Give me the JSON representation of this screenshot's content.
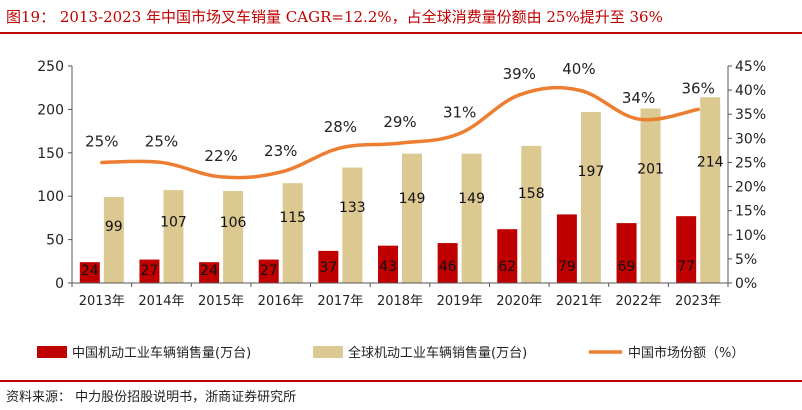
{
  "title": "图19： 2013-2023 年中国市场叉车销量 CAGR=12.2%，占全球消费量份额由 25%提升至 36%",
  "source": "资料来源： 中力股份招股说明书，浙商证券研究所",
  "colors": {
    "china": "#c00000",
    "global": "#dcc891",
    "share": "#ed7d31",
    "title": "#c00000"
  },
  "chart_data": {
    "type": "bar",
    "categories": [
      "2013年",
      "2014年",
      "2015年",
      "2016年",
      "2017年",
      "2018年",
      "2019年",
      "2020年",
      "2021年",
      "2022年",
      "2023年"
    ],
    "series": [
      {
        "name": "中国机动工业车辆销售量(万台)",
        "type": "bar",
        "axis": "left",
        "values": [
          24,
          27,
          24,
          27,
          37,
          43,
          46,
          62,
          79,
          69,
          77
        ]
      },
      {
        "name": "全球机动工业车辆销售量(万台)",
        "type": "bar",
        "axis": "left",
        "values": [
          99,
          107,
          106,
          115,
          133,
          149,
          149,
          158,
          197,
          201,
          214
        ]
      },
      {
        "name": "中国市场份额（%）",
        "type": "line",
        "axis": "right",
        "values": [
          25,
          25,
          22,
          23,
          28,
          29,
          31,
          39,
          40,
          34,
          36
        ]
      }
    ],
    "ylim_left": [
      0,
      250
    ],
    "yticks_left": [
      "0",
      "50",
      "100",
      "150",
      "200",
      "250"
    ],
    "ylim_right": [
      0,
      45
    ],
    "yticks_right": [
      "0%",
      "5%",
      "10%",
      "15%",
      "20%",
      "25%",
      "30%",
      "35%",
      "40%",
      "45%"
    ],
    "legend_position": "bottom",
    "grid": false
  }
}
